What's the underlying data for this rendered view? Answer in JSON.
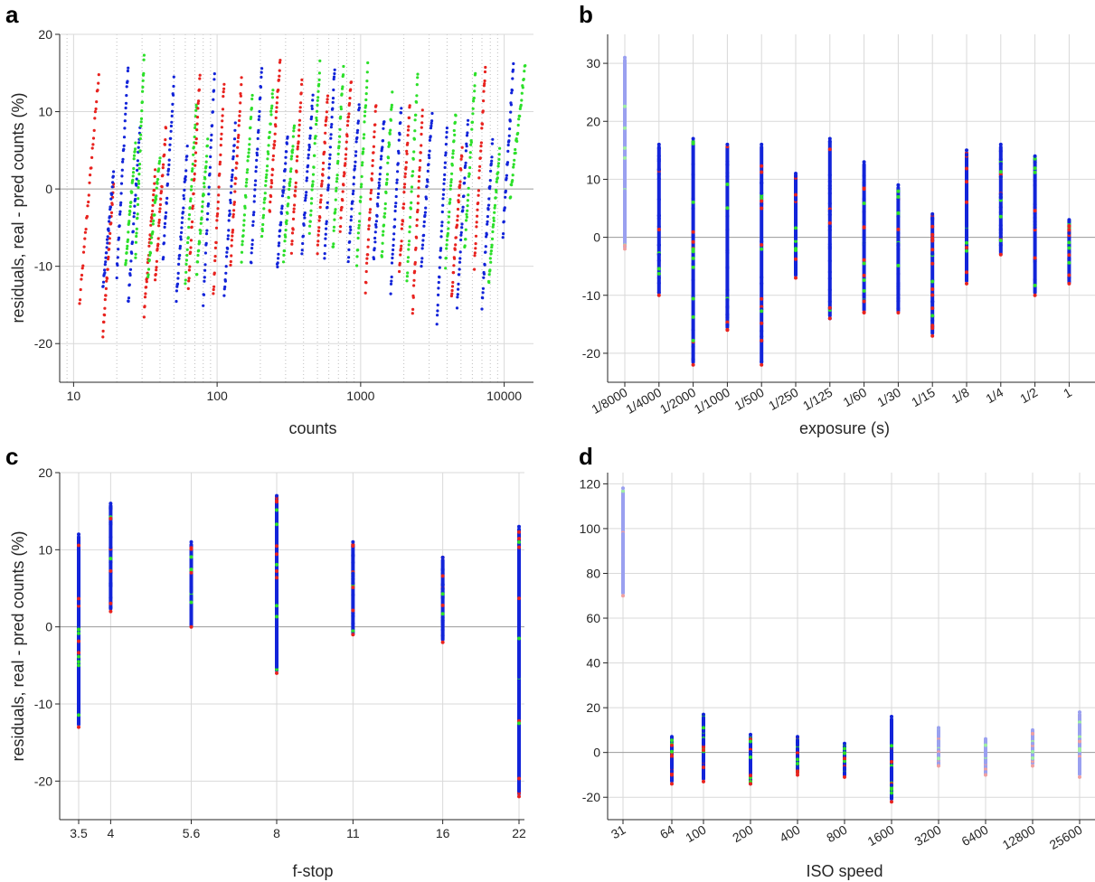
{
  "chart_data": [
    {
      "panel": "a",
      "type": "scatter",
      "xlabel": "counts",
      "ylabel": "residuals, real - pred counts (%)",
      "xscale": "log",
      "xlim": [
        8,
        16000
      ],
      "ylim": [
        -25,
        20
      ],
      "xticks": [
        10,
        100,
        1000,
        10000
      ],
      "xticklabels": [
        "10",
        "100",
        "1000",
        "10000"
      ],
      "yticks": [
        -20,
        -10,
        0,
        10,
        20
      ],
      "yticklabels": [
        "-20",
        "-10",
        "0",
        "10",
        "20"
      ],
      "grid": true,
      "colors": {
        "red": "#e8231f",
        "green": "#2de02a",
        "blue": "#1224d9"
      },
      "segments": [
        {
          "color": "red",
          "x0": 11,
          "x1": 15,
          "y0": -15,
          "y1": 15
        },
        {
          "color": "red",
          "x0": 16,
          "x1": 19,
          "y0": -19,
          "y1": 1
        },
        {
          "color": "blue",
          "x0": 16,
          "x1": 19,
          "y0": -13,
          "y1": 2
        },
        {
          "color": "blue",
          "x0": 20,
          "x1": 24,
          "y0": -11,
          "y1": 16
        },
        {
          "color": "green",
          "x0": 23,
          "x1": 27,
          "y0": -10,
          "y1": 6
        },
        {
          "color": "blue",
          "x0": 24,
          "x1": 29,
          "y0": -15,
          "y1": 8
        },
        {
          "color": "green",
          "x0": 27,
          "x1": 31,
          "y0": -9,
          "y1": 17
        },
        {
          "color": "red",
          "x0": 31,
          "x1": 37,
          "y0": -16,
          "y1": 2
        },
        {
          "color": "green",
          "x0": 33,
          "x1": 40,
          "y0": -11,
          "y1": 4
        },
        {
          "color": "red",
          "x0": 37,
          "x1": 44,
          "y0": -12,
          "y1": 8
        },
        {
          "color": "blue",
          "x0": 42,
          "x1": 50,
          "y0": -9,
          "y1": 14
        },
        {
          "color": "blue",
          "x0": 52,
          "x1": 62,
          "y0": -14,
          "y1": 5
        },
        {
          "color": "green",
          "x0": 60,
          "x1": 72,
          "y0": -12,
          "y1": 11
        },
        {
          "color": "red",
          "x0": 63,
          "x1": 76,
          "y0": -13,
          "y1": 15
        },
        {
          "color": "green",
          "x0": 72,
          "x1": 86,
          "y0": -11,
          "y1": 6
        },
        {
          "color": "blue",
          "x0": 80,
          "x1": 96,
          "y0": -15,
          "y1": 15
        },
        {
          "color": "red",
          "x0": 94,
          "x1": 112,
          "y0": -14,
          "y1": 14
        },
        {
          "color": "blue",
          "x0": 112,
          "x1": 134,
          "y0": -14,
          "y1": 8
        },
        {
          "color": "red",
          "x0": 124,
          "x1": 148,
          "y0": -10,
          "y1": 14
        },
        {
          "color": "green",
          "x0": 148,
          "x1": 176,
          "y0": -9,
          "y1": 12
        },
        {
          "color": "blue",
          "x0": 172,
          "x1": 205,
          "y0": -10,
          "y1": 16
        },
        {
          "color": "green",
          "x0": 205,
          "x1": 245,
          "y0": -6,
          "y1": 13
        },
        {
          "color": "red",
          "x0": 232,
          "x1": 275,
          "y0": -3,
          "y1": 17
        },
        {
          "color": "blue",
          "x0": 262,
          "x1": 310,
          "y0": -10,
          "y1": 7
        },
        {
          "color": "green",
          "x0": 290,
          "x1": 345,
          "y0": -9,
          "y1": 8
        },
        {
          "color": "red",
          "x0": 330,
          "x1": 390,
          "y0": -8,
          "y1": 14
        },
        {
          "color": "blue",
          "x0": 390,
          "x1": 465,
          "y0": -8,
          "y1": 12
        },
        {
          "color": "green",
          "x0": 440,
          "x1": 520,
          "y0": -6,
          "y1": 16
        },
        {
          "color": "red",
          "x0": 500,
          "x1": 590,
          "y0": -8,
          "y1": 12
        },
        {
          "color": "blue",
          "x0": 560,
          "x1": 660,
          "y0": -9,
          "y1": 16
        },
        {
          "color": "green",
          "x0": 640,
          "x1": 760,
          "y0": -8,
          "y1": 16
        },
        {
          "color": "red",
          "x0": 720,
          "x1": 860,
          "y0": -5,
          "y1": 14
        },
        {
          "color": "blue",
          "x0": 820,
          "x1": 980,
          "y0": -9,
          "y1": 11
        },
        {
          "color": "green",
          "x0": 940,
          "x1": 1120,
          "y0": -10,
          "y1": 16
        },
        {
          "color": "red",
          "x0": 1080,
          "x1": 1280,
          "y0": -13,
          "y1": 11
        },
        {
          "color": "blue",
          "x0": 1230,
          "x1": 1460,
          "y0": -9,
          "y1": 9
        },
        {
          "color": "green",
          "x0": 1400,
          "x1": 1660,
          "y0": -9,
          "y1": 12
        },
        {
          "color": "blue",
          "x0": 1620,
          "x1": 1920,
          "y0": -13,
          "y1": 11
        },
        {
          "color": "red",
          "x0": 1860,
          "x1": 2200,
          "y0": -11,
          "y1": 11
        },
        {
          "color": "green",
          "x0": 2100,
          "x1": 2500,
          "y0": -12,
          "y1": 15
        },
        {
          "color": "red",
          "x0": 2300,
          "x1": 2700,
          "y0": -16,
          "y1": 10
        },
        {
          "color": "blue",
          "x0": 2650,
          "x1": 3150,
          "y0": -10,
          "y1": 10
        },
        {
          "color": "blue",
          "x0": 3400,
          "x1": 4000,
          "y0": -17,
          "y1": 8
        },
        {
          "color": "green",
          "x0": 3900,
          "x1": 4600,
          "y0": -10,
          "y1": 10
        },
        {
          "color": "red",
          "x0": 4300,
          "x1": 5100,
          "y0": -14,
          "y1": 5
        },
        {
          "color": "blue",
          "x0": 4700,
          "x1": 5600,
          "y0": -15,
          "y1": 9
        },
        {
          "color": "green",
          "x0": 5300,
          "x1": 6300,
          "y0": -8,
          "y1": 15
        },
        {
          "color": "red",
          "x0": 6200,
          "x1": 7400,
          "y0": -10,
          "y1": 16
        },
        {
          "color": "blue",
          "x0": 7000,
          "x1": 8300,
          "y0": -15,
          "y1": 6
        },
        {
          "color": "green",
          "x0": 7800,
          "x1": 9300,
          "y0": -12,
          "y1": 5
        },
        {
          "color": "blue",
          "x0": 9800,
          "x1": 11600,
          "y0": -6,
          "y1": 16
        },
        {
          "color": "green",
          "x0": 11000,
          "x1": 14000,
          "y0": -1,
          "y1": 16
        }
      ]
    },
    {
      "panel": "b",
      "type": "scatter",
      "xlabel": "exposure (s)",
      "ylim": [
        -25,
        35
      ],
      "yticks": [
        -20,
        -10,
        0,
        10,
        20,
        30
      ],
      "yticklabels": [
        "-20",
        "-10",
        "0",
        "10",
        "20",
        "30"
      ],
      "categories": [
        "1/8000",
        "1/4000",
        "1/2000",
        "1/1000",
        "1/500",
        "1/250",
        "1/125",
        "1/60",
        "1/30",
        "1/15",
        "1/8",
        "1/4",
        "1/2",
        "1"
      ],
      "columns": [
        {
          "min": -2,
          "max": 31,
          "faded": true
        },
        {
          "min": -10,
          "max": 16
        },
        {
          "min": -22,
          "max": 17
        },
        {
          "min": -16,
          "max": 16
        },
        {
          "min": -22,
          "max": 16
        },
        {
          "min": -7,
          "max": 11
        },
        {
          "min": -14,
          "max": 17
        },
        {
          "min": -13,
          "max": 13
        },
        {
          "min": -13,
          "max": 9
        },
        {
          "min": -17,
          "max": 4
        },
        {
          "min": -8,
          "max": 15
        },
        {
          "min": -3,
          "max": 16
        },
        {
          "min": -10,
          "max": 14
        },
        {
          "min": -8,
          "max": 3
        }
      ],
      "grid": true
    },
    {
      "panel": "c",
      "type": "scatter",
      "xlabel": "f-stop",
      "ylabel": "residuals, real - pred counts (%)",
      "ylim": [
        -25,
        20
      ],
      "yticks": [
        -20,
        -10,
        0,
        10,
        20
      ],
      "yticklabels": [
        "-20",
        "-10",
        "0",
        "10",
        "20"
      ],
      "categories": [
        "3.5",
        "4",
        "5.6",
        "8",
        "11",
        "16",
        "22"
      ],
      "x": [
        3.5,
        4,
        5.6,
        8,
        11,
        16,
        22
      ],
      "columns": [
        {
          "min": -13,
          "max": 12
        },
        {
          "min": 2,
          "max": 16
        },
        {
          "min": 0,
          "max": 11
        },
        {
          "min": -6,
          "max": 17
        },
        {
          "min": -1,
          "max": 11
        },
        {
          "min": -2,
          "max": 9
        },
        {
          "min": -22,
          "max": 13
        }
      ],
      "grid": true
    },
    {
      "panel": "d",
      "type": "scatter",
      "xlabel": "ISO speed",
      "ylim": [
        -30,
        125
      ],
      "yticks": [
        -20,
        0,
        20,
        40,
        60,
        80,
        100,
        120
      ],
      "yticklabels": [
        "-20",
        "0",
        "20",
        "40",
        "60",
        "80",
        "100",
        "120"
      ],
      "categories": [
        "31",
        "64",
        "100",
        "200",
        "400",
        "800",
        "1600",
        "3200",
        "6400",
        "12800",
        "25600"
      ],
      "columns": [
        {
          "min": 70,
          "max": 118,
          "faded": true
        },
        {
          "min": -14,
          "max": 7
        },
        {
          "min": -13,
          "max": 17
        },
        {
          "min": -14,
          "max": 8
        },
        {
          "min": -10,
          "max": 7
        },
        {
          "min": -11,
          "max": 4
        },
        {
          "min": -22,
          "max": 16
        },
        {
          "min": -6,
          "max": 11,
          "faded": true
        },
        {
          "min": -10,
          "max": 6,
          "faded": true
        },
        {
          "min": -6,
          "max": 10,
          "faded": true
        },
        {
          "min": -11,
          "max": 18,
          "faded": true
        }
      ],
      "grid": true
    }
  ]
}
